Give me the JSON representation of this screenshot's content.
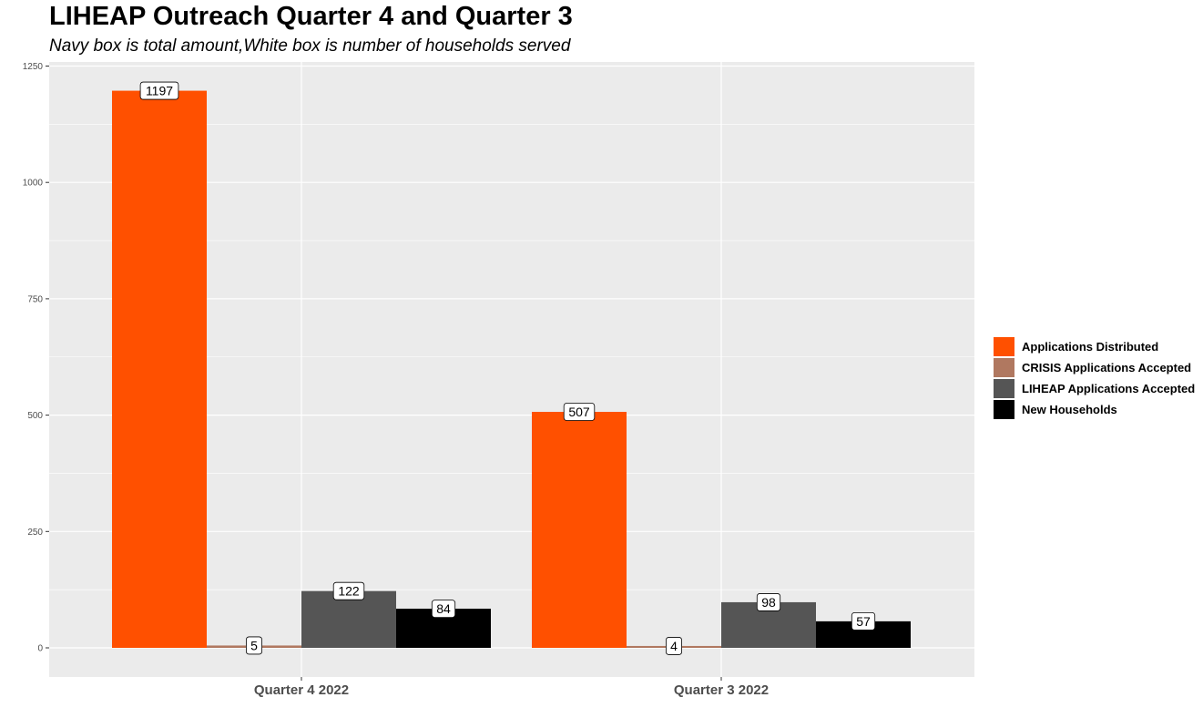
{
  "chart_data": {
    "type": "bar",
    "title": "LIHEAP Outreach Quarter 4 and Quarter 3",
    "subtitle": "Navy box is total amount,White box is number of households served",
    "categories": [
      "Quarter 4 2022",
      "Quarter 3 2022"
    ],
    "series": [
      {
        "name": "Applications Distributed",
        "color": "#ff5000",
        "values": [
          1197,
          507
        ]
      },
      {
        "name": "CRISIS Applications Accepted",
        "color": "#b07860",
        "values": [
          5,
          4
        ]
      },
      {
        "name": "LIHEAP Applications Accepted",
        "color": "#555555",
        "values": [
          122,
          98
        ]
      },
      {
        "name": "New Households",
        "color": "#000000",
        "values": [
          84,
          57
        ]
      }
    ],
    "ylim": [
      -60,
      1250
    ],
    "yticks": [
      0,
      250,
      500,
      750,
      1000,
      1250
    ],
    "grid": true,
    "legend_position": "right",
    "panel_color": "#ebebeb"
  }
}
